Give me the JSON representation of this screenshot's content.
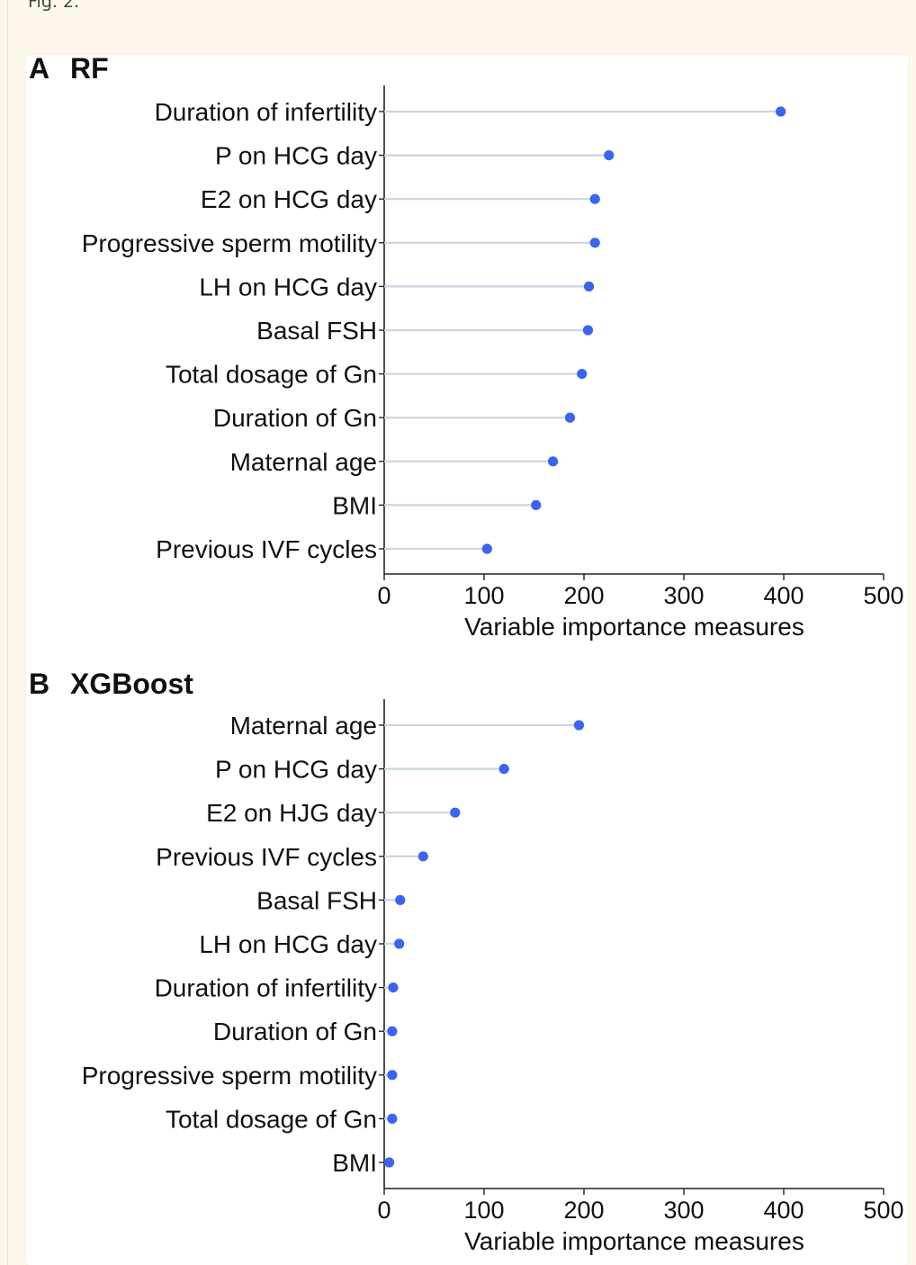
{
  "figure": {
    "caption": "Fig. 2."
  },
  "colors": {
    "point": "#3b64f0",
    "stem": "#c9d6df",
    "axis": "#222222",
    "text": "#111111"
  },
  "chart_data": [
    {
      "type": "scatter",
      "style": "lollipop",
      "panel_letter": "A",
      "title": "RF",
      "xlabel": "Variable importance measures",
      "ylabel": "",
      "xlim": [
        0,
        500
      ],
      "xticks": [
        "0",
        "100",
        "200",
        "300",
        "400",
        "500"
      ],
      "grid": false,
      "categories": [
        "Duration of infertility",
        "P on HCG day",
        "E2 on HCG day",
        "Progressive sperm motility",
        "LH on HCG day",
        "Basal FSH",
        "Total dosage of Gn",
        "Duration of Gn",
        "Maternal age",
        "BMI",
        "Previous IVF cycles"
      ],
      "values": [
        397,
        225,
        211,
        211,
        205,
        204,
        198,
        186,
        169,
        152,
        103
      ]
    },
    {
      "type": "scatter",
      "style": "lollipop",
      "panel_letter": "B",
      "title": "XGBoost",
      "xlabel": "Variable importance measures",
      "ylabel": "",
      "xlim": [
        0,
        500
      ],
      "xticks": [
        "0",
        "100",
        "200",
        "300",
        "400",
        "500"
      ],
      "grid": false,
      "categories": [
        "Maternal age",
        "P on HCG day",
        "E2 on HJG day",
        "Previous IVF cycles",
        "Basal FSH",
        "LH on HCG day",
        "Duration of infertility",
        "Duration of Gn",
        "Progressive sperm motility",
        "Total dosage of Gn",
        "BMI"
      ],
      "values": [
        195,
        120,
        71,
        39,
        16,
        15,
        9,
        8,
        8,
        8,
        5
      ]
    }
  ]
}
